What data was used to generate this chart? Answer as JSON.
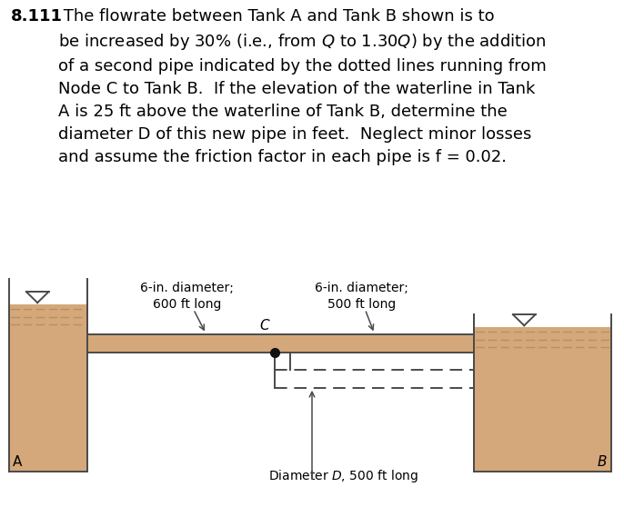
{
  "bg_color": "#ffffff",
  "tank_fill_color": "#d4a87a",
  "tank_border_color": "#4a4a4a",
  "water_stripe_color": "#b89060",
  "text_color": "#000000",
  "node_color": "#111111",
  "title_bold": "8.111",
  "label_A": "A",
  "label_B": "B",
  "label_C": "C",
  "label_pipe1_line1": "6-in. diameter;",
  "label_pipe1_line2": "600 ft long",
  "label_pipe2_line1": "6-in. diameter;",
  "label_pipe2_line2": "500 ft long",
  "label_pipe3": "Diameter $D$, 500 ft long",
  "fontsize_body": 13,
  "fontsize_diagram": 10
}
